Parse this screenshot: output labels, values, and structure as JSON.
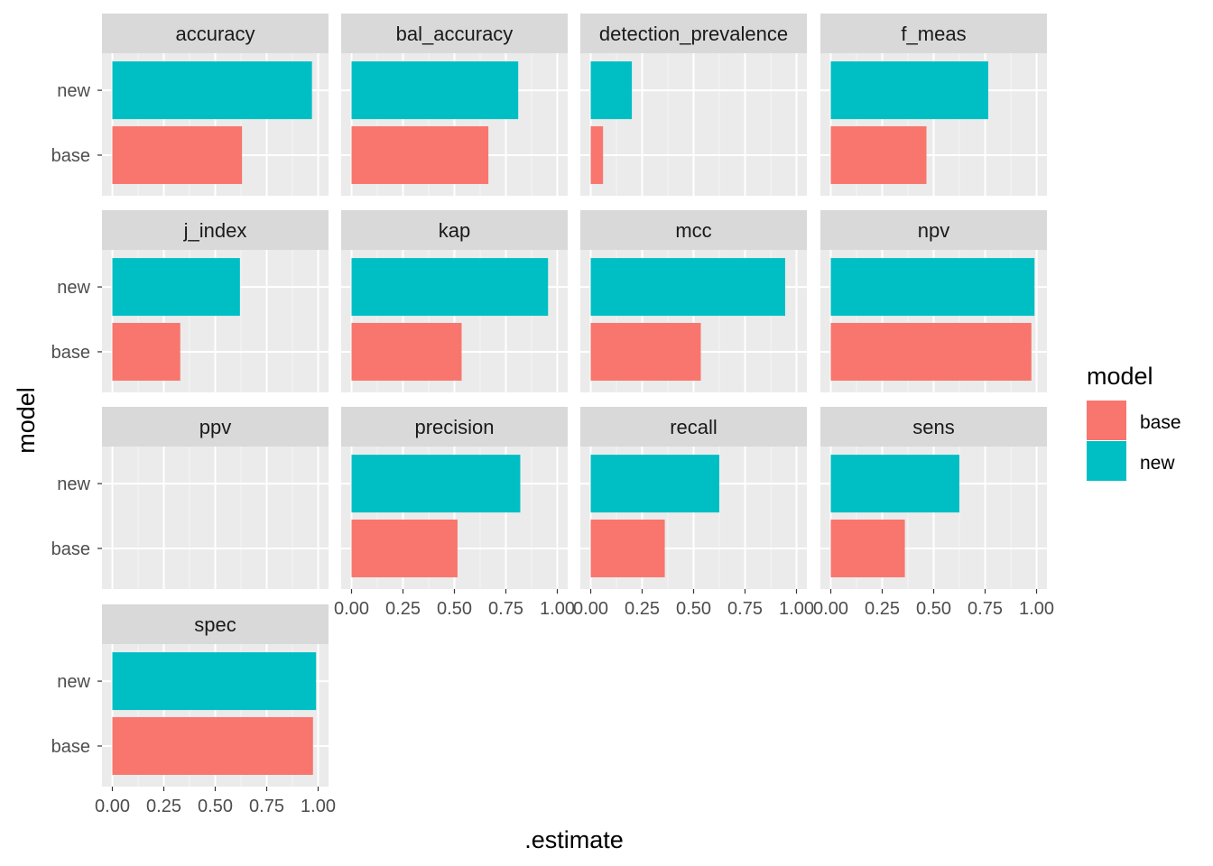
{
  "chart_data": {
    "type": "bar",
    "orientation": "horizontal",
    "facet_by": "metric",
    "facet_layout": "4 columns, 4 rows",
    "xlabel": ".estimate",
    "ylabel": "model",
    "xlim": [
      0,
      1
    ],
    "x_ticks": [
      "0.00",
      "0.25",
      "0.50",
      "0.75",
      "1.00"
    ],
    "categories": [
      "new",
      "base"
    ],
    "grid": true,
    "legend": {
      "title": "model",
      "position": "right",
      "entries": [
        {
          "label": "base",
          "color": "#F8766D"
        },
        {
          "label": "new",
          "color": "#00BFC4"
        }
      ]
    },
    "colors": {
      "base": "#F8766D",
      "new": "#00BFC4",
      "panel_bg": "#EBEBEB",
      "strip_bg": "#D9D9D9"
    },
    "panels": [
      {
        "metric": "accuracy",
        "base": 0.63,
        "new": 0.97
      },
      {
        "metric": "bal_accuracy",
        "base": 0.665,
        "new": 0.81
      },
      {
        "metric": "detection_prevalence",
        "base": 0.06,
        "new": 0.2
      },
      {
        "metric": "f_meas",
        "base": 0.465,
        "new": 0.765
      },
      {
        "metric": "j_index",
        "base": 0.33,
        "new": 0.62
      },
      {
        "metric": "kap",
        "base": 0.535,
        "new": 0.955
      },
      {
        "metric": "mcc",
        "base": 0.535,
        "new": 0.945
      },
      {
        "metric": "npv",
        "base": 0.975,
        "new": 0.99
      },
      {
        "metric": "ppv",
        "base": null,
        "new": null
      },
      {
        "metric": "precision",
        "base": 0.515,
        "new": 0.82
      },
      {
        "metric": "recall",
        "base": 0.36,
        "new": 0.625
      },
      {
        "metric": "sens",
        "base": 0.36,
        "new": 0.625
      },
      {
        "metric": "spec",
        "base": 0.975,
        "new": 0.99
      }
    ]
  }
}
